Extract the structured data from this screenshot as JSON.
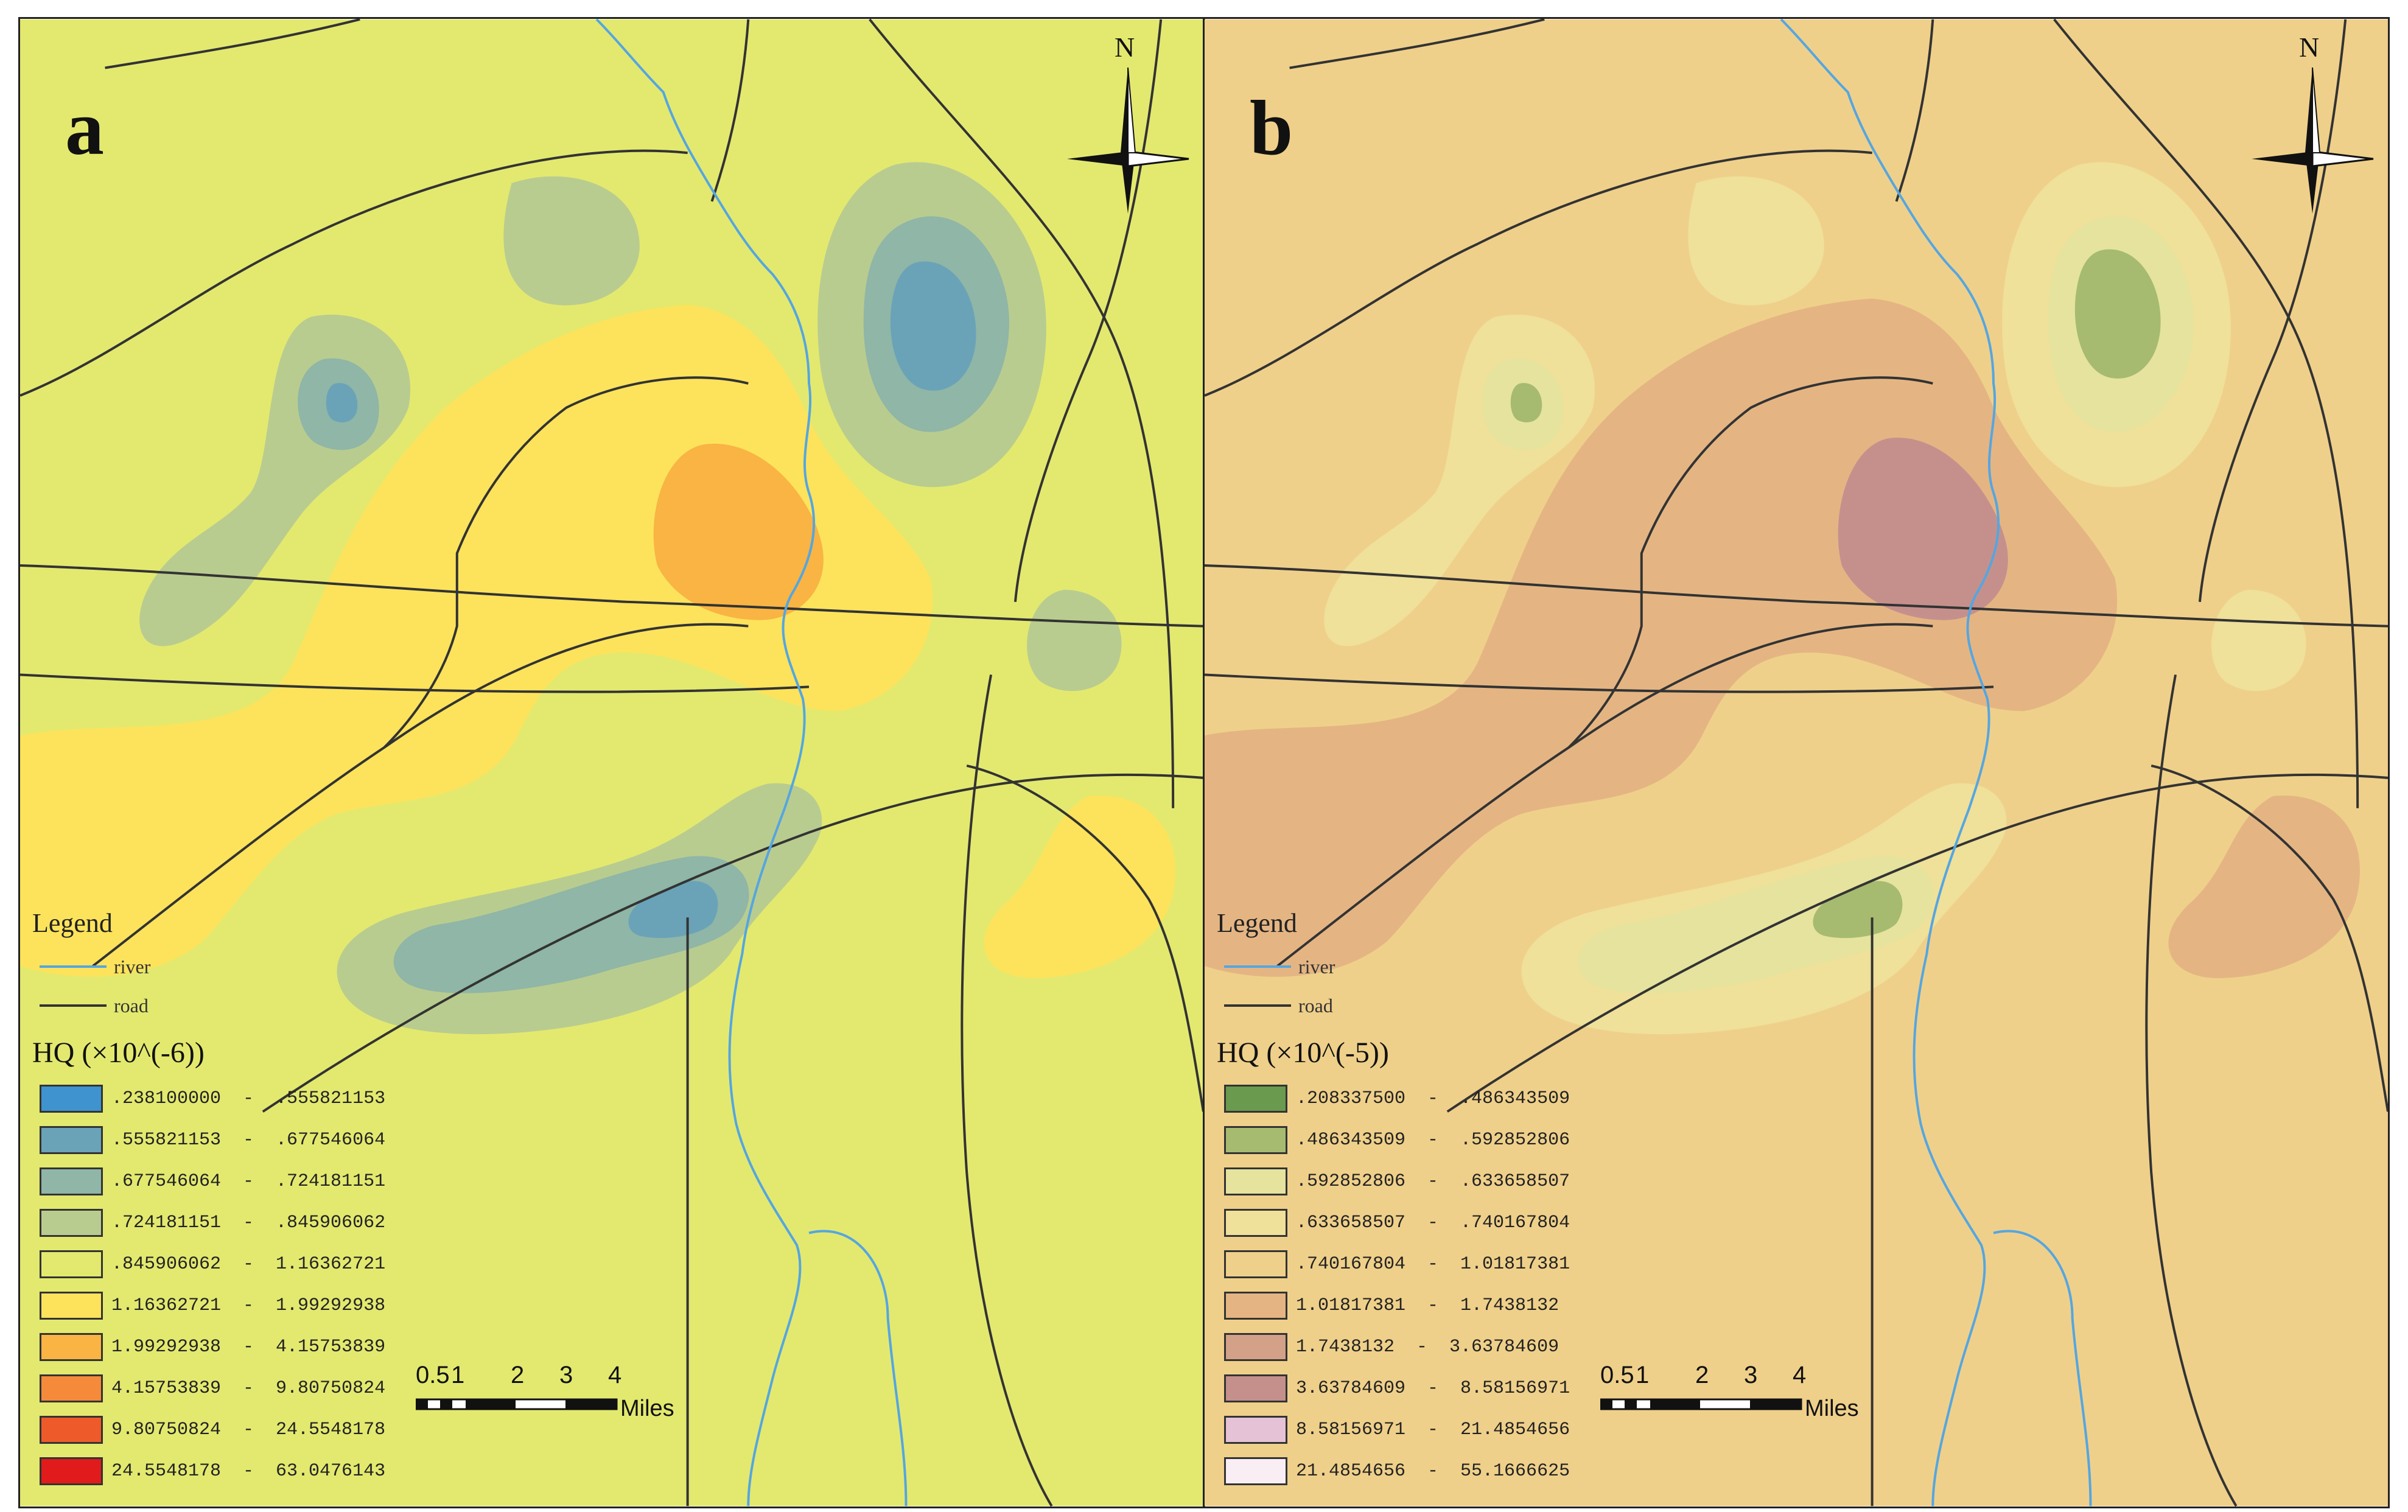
{
  "panels": [
    {
      "id": "a",
      "letter": "a",
      "background": "#e3e96f",
      "legend_title": "Legend",
      "river_label": "river",
      "road_label": "road",
      "hq_title": "HQ (×10^(-6))",
      "classes": [
        {
          "label": ".238100000  -  .555821153",
          "color": "#3f93cf"
        },
        {
          "label": ".555821153  -  .677546064",
          "color": "#6aa3b8"
        },
        {
          "label": ".677546064  -  .724181151",
          "color": "#8fb6a6"
        },
        {
          "label": ".724181151  -  .845906062",
          "color": "#b9cc8f"
        },
        {
          "label": ".845906062  -  1.16362721",
          "color": "#e3e96f"
        },
        {
          "label": "1.16362721  -  1.99292938",
          "color": "#fce35b"
        },
        {
          "label": "1.99292938  -  4.15753839",
          "color": "#f9b443"
        },
        {
          "label": "4.15753839  -  9.80750824",
          "color": "#f58a3a"
        },
        {
          "label": "9.80750824  -  24.5548178",
          "color": "#ef5a2a"
        },
        {
          "label": "24.5548178  -  63.0476143",
          "color": "#e11b1b"
        }
      ]
    },
    {
      "id": "b",
      "letter": "b",
      "background": "#efd08a",
      "legend_title": "Legend",
      "river_label": "river",
      "road_label": "road",
      "hq_title": "HQ (×10^(-5))",
      "classes": [
        {
          "label": ".208337500  -  .486343509",
          "color": "#6a9a4e"
        },
        {
          "label": ".486343509  -  .592852806",
          "color": "#a6bb70"
        },
        {
          "label": ".592852806  -  .633658507",
          "color": "#e5e39e"
        },
        {
          "label": ".633658507  -  .740167804",
          "color": "#efe09a"
        },
        {
          "label": ".740167804  -  1.01817381",
          "color": "#efd08a"
        },
        {
          "label": "1.01817381  -  1.7438132",
          "color": "#e4b583"
        },
        {
          "label": "1.7438132  -  3.63784609",
          "color": "#d2a187"
        },
        {
          "label": "3.63784609  -  8.58156971",
          "color": "#c5908c"
        },
        {
          "label": "8.58156971  -  21.4854656",
          "color": "#e6c2d6"
        },
        {
          "label": "21.4854656  -  55.1666625",
          "color": "#faeef5"
        }
      ]
    }
  ],
  "north_label": "N",
  "scale_ticks": [
    "0",
    "0.5",
    "1",
    "2",
    "3",
    "4"
  ],
  "scale_unit": "Miles",
  "colors": {
    "river": "#55a6e0",
    "road": "#333333"
  },
  "icons": [
    "north-arrow-icon",
    "scale-bar-icon"
  ]
}
